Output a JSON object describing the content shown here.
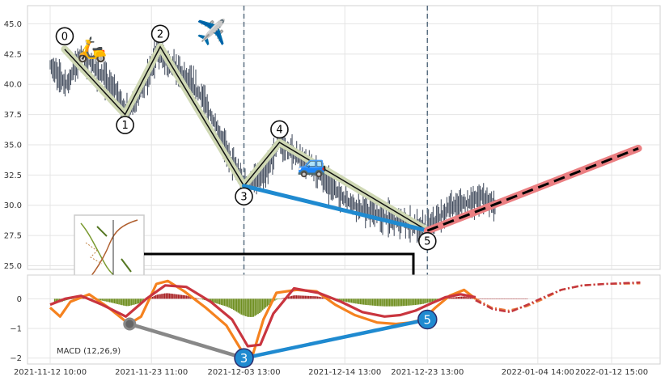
{
  "chart_data": [
    {
      "type": "candlestick",
      "panel": "price",
      "ylim": [
        24.7,
        46.5
      ],
      "y_ticks": [
        "25.0",
        "27.5",
        "30.0",
        "32.5",
        "35.0",
        "37.5",
        "40.0",
        "42.5",
        "45.0"
      ],
      "grid": true,
      "candle_color": "#3a4456",
      "price_path": [
        {
          "x": "2021-11-12 10:00",
          "y": 41.5
        },
        {
          "x": "2021-11-14 06:00",
          "y": 40.0
        },
        {
          "x": "2021-11-15 19:00",
          "y": 42.5
        },
        {
          "x": "2021-11-19 12:00",
          "y": 39.5
        },
        {
          "x": "2021-11-20 23:00",
          "y": 37.4
        },
        {
          "x": "2021-11-23 00:00",
          "y": 40.5
        },
        {
          "x": "2021-11-24 01:00",
          "y": 42.7
        },
        {
          "x": "2021-11-26 15:00",
          "y": 41.0
        },
        {
          "x": "2021-11-28 23:00",
          "y": 39.0
        },
        {
          "x": "2021-12-02 07:00",
          "y": 33.5
        },
        {
          "x": "2021-12-03 13:00",
          "y": 31.7
        },
        {
          "x": "2021-12-05 21:00",
          "y": 32.5
        },
        {
          "x": "2021-12-07 06:00",
          "y": 35.2
        },
        {
          "x": "2021-12-11 03:00",
          "y": 33.0
        },
        {
          "x": "2021-12-14 13:00",
          "y": 30.5
        },
        {
          "x": "2021-12-16 21:00",
          "y": 29.5
        },
        {
          "x": "2021-12-23 13:00",
          "y": 28.0
        },
        {
          "x": "2021-12-25 22:00",
          "y": 29.8
        },
        {
          "x": "2021-12-28 08:00",
          "y": 30.3
        },
        {
          "x": "2021-12-29 13:00",
          "y": 30.8
        },
        {
          "x": "2021-12-30 23:00",
          "y": 30.0
        }
      ],
      "wave_points": [
        {
          "label": "0",
          "x": "2021-11-14 00:00",
          "y": 42.9
        },
        {
          "label": "1",
          "x": "2021-11-20 14:00",
          "y": 37.5
        },
        {
          "label": "2",
          "x": "2021-11-24 10:00",
          "y": 43.1
        },
        {
          "label": "3",
          "x": "2021-12-03 13:00",
          "y": 31.6
        },
        {
          "label": "4",
          "x": "2021-12-07 10:00",
          "y": 35.2
        },
        {
          "label": "5",
          "x": "2021-12-23 13:00",
          "y": 27.9
        }
      ],
      "trendline": {
        "x": [
          "2021-12-03 13:00",
          "2021-12-23 13:00"
        ],
        "y": [
          31.6,
          27.9
        ]
      },
      "forecast": {
        "x": [
          "2021-12-23 13:00",
          "2022-01-15 13:00"
        ],
        "y": [
          27.9,
          34.7
        ]
      },
      "markers": [
        {
          "icon": "scooter-icon",
          "glyph": "🛵",
          "x": "2021-11-17 00:00",
          "y": 42.8
        },
        {
          "icon": "airplane-icon",
          "glyph": "✈️",
          "x": "2021-11-30 00:00",
          "y": 44.2
        },
        {
          "icon": "car-icon",
          "glyph": "🚙",
          "x": "2021-12-11 00:00",
          "y": 33.3
        }
      ],
      "vlines": [
        "2021-12-03 13:00",
        "2021-12-23 13:00"
      ],
      "colors": {
        "wave_line": "#111111",
        "wave_halo": "#cfd8b4",
        "trendline": "#1f8ad0",
        "forecast_dash": "#000000",
        "forecast_band": "#eb7f82",
        "vline": "#5a6f82"
      }
    },
    {
      "type": "line",
      "panel": "macd",
      "label": "MACD (12,26,9)",
      "ylim": [
        -2.2,
        0.8
      ],
      "y_ticks": [
        "0",
        "−1",
        "−2"
      ],
      "grid": true,
      "x_ticks": [
        "2021-11-12 10:00",
        "2021-11-23 11:00",
        "2021-12-03 13:00",
        "2021-12-14 13:00",
        "2021-12-23 13:00",
        "2022-01-04 14:00",
        "2022-01-12 15:00"
      ],
      "series": [
        {
          "color": "#f5821f",
          "x": [
            "2021-11-12 10:00",
            "2021-11-13 12:00",
            "2021-11-14 15:00",
            "2021-11-16 16:00",
            "2021-11-18 19:00",
            "2021-11-21 00:00",
            "2021-11-22 08:00",
            "2021-11-24 00:00",
            "2021-11-25 06:00",
            "2021-11-27 01:00",
            "2021-11-29 09:00",
            "2021-12-01 15:00",
            "2021-12-03 07:00",
            "2021-12-04 13:00",
            "2021-12-05 16:00",
            "2021-12-07 02:00",
            "2021-12-09 07:00",
            "2021-12-11 11:00",
            "2021-12-13 12:00",
            "2021-12-15 15:00",
            "2021-12-18 01:00",
            "2021-12-20 03:00",
            "2021-12-21 17:00",
            "2021-12-23 01:00",
            "2021-12-24 10:00",
            "2021-12-25 23:00",
            "2021-12-27 13:00",
            "2021-12-28 19:00"
          ],
          "y": [
            -0.3,
            -0.6,
            -0.1,
            0.15,
            -0.3,
            -0.85,
            -0.6,
            0.5,
            0.6,
            0.25,
            -0.3,
            -0.9,
            -1.75,
            -1.85,
            -0.7,
            0.2,
            0.3,
            0.25,
            -0.2,
            -0.55,
            -0.8,
            -0.85,
            -0.8,
            -0.7,
            -0.3,
            0.1,
            0.3,
            0.0
          ]
        },
        {
          "color": "#c9353f",
          "x": [
            "2021-11-12 10:00",
            "2021-11-14 01:00",
            "2021-11-15 19:00",
            "2021-11-18 02:00",
            "2021-11-20 16:00",
            "2021-11-22 22:00",
            "2021-11-24 23:00",
            "2021-11-27 06:00",
            "2021-11-29 22:00",
            "2021-12-02 06:00",
            "2021-12-03 23:00",
            "2021-12-05 08:00",
            "2021-12-06 18:00",
            "2021-12-09 00:00",
            "2021-12-11 16:00",
            "2021-12-14 03:00",
            "2021-12-16 11:00",
            "2021-12-18 21:00",
            "2021-12-20 14:00",
            "2021-12-22 06:00",
            "2021-12-24 00:00",
            "2021-12-25 12:00",
            "2021-12-27 04:00",
            "2021-12-28 19:00"
          ],
          "y": [
            -0.2,
            0.0,
            0.1,
            -0.2,
            -0.6,
            0.0,
            0.45,
            0.4,
            -0.1,
            -0.7,
            -1.6,
            -1.55,
            -0.5,
            0.35,
            0.2,
            -0.1,
            -0.45,
            -0.6,
            -0.55,
            -0.4,
            -0.15,
            0.05,
            0.15,
            0.05
          ]
        },
        {
          "color": "#ea7a3c",
          "style": "dashdot",
          "x": [
            "2021-12-28 19:00",
            "2021-12-30 13:00",
            "2022-01-01 10:00",
            "2022-01-03 09:00",
            "2022-01-05 05:00",
            "2022-01-07 03:00",
            "2022-01-09 10:00",
            "2022-01-11 21:00",
            "2022-01-15 18:00"
          ],
          "y": [
            0.0,
            -0.3,
            -0.4,
            -0.25,
            0.0,
            0.3,
            0.45,
            0.5,
            0.52
          ]
        },
        {
          "color": "#c4383e",
          "style": "dashdot",
          "x": [
            "2021-12-28 19:00",
            "2021-12-30 16:00",
            "2022-01-01 13:00",
            "2022-01-03 11:00",
            "2022-01-05 05:00",
            "2022-01-07 03:00",
            "2022-01-09 10:00",
            "2022-01-11 21:00",
            "2022-01-15 18:00"
          ],
          "y": [
            -0.05,
            -0.35,
            -0.45,
            -0.2,
            0.05,
            0.3,
            0.45,
            0.5,
            0.55
          ]
        }
      ],
      "histogram_colors": {
        "positive": "#a82225",
        "negative": "#6e8e1f"
      },
      "points": [
        {
          "label": "",
          "x": "2021-11-21 02:00",
          "y": -0.85,
          "color": "#888888"
        },
        {
          "label": "3",
          "x": "2021-12-03 13:00",
          "y": -2.0,
          "color": "#1f8ad0"
        },
        {
          "label": "5",
          "x": "2021-12-23 13:00",
          "y": -0.7,
          "color": "#1f8ad0"
        }
      ],
      "segments": [
        {
          "from": "2021-11-21 02:00",
          "to": "2021-12-03 13:00",
          "color": "#888888"
        },
        {
          "from": "2021-12-03 13:00",
          "to": "2021-12-23 13:00",
          "color": "#1f8ad0"
        }
      ]
    }
  ]
}
